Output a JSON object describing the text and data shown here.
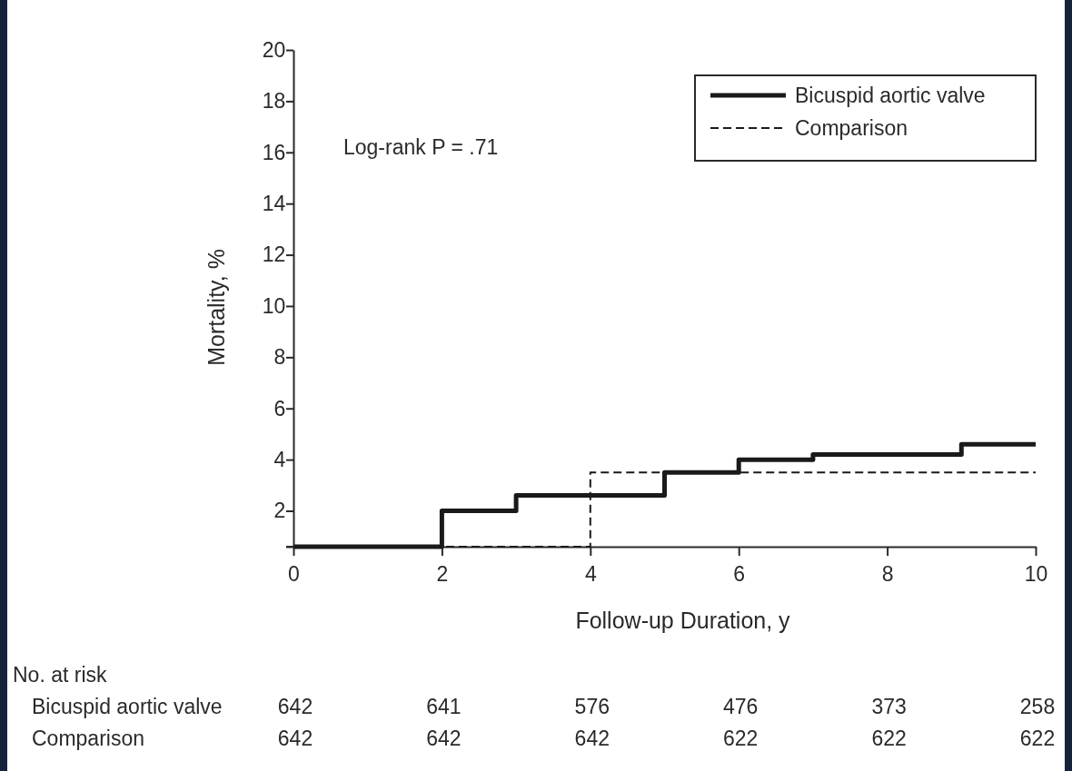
{
  "chart_data": {
    "type": "step",
    "xlabel": "Follow-up Duration, y",
    "ylabel": "Mortality, %",
    "xlim": [
      0,
      10
    ],
    "xticks": [
      0,
      2,
      4,
      6,
      8,
      10
    ],
    "ylim": [
      0.6,
      20
    ],
    "yticks": [
      {
        "value": 0.6,
        "label": null
      },
      2,
      4,
      6,
      8,
      10,
      12,
      14,
      16,
      18,
      20
    ],
    "legend": "top right",
    "grid": false,
    "series": [
      {
        "name": "Bicuspid aortic valve",
        "color": "#1a1a1a",
        "line_style": "solid",
        "x": [
          0,
          2,
          3,
          5,
          6,
          7,
          9,
          10
        ],
        "values": [
          0.6,
          2.0,
          2.6,
          3.5,
          4.0,
          4.2,
          4.6,
          4.6
        ]
      },
      {
        "name": "Comparison",
        "color": "#1a1a1a",
        "line_style": "dashed",
        "x": [
          0,
          4,
          10
        ],
        "values": [
          0.6,
          3.5,
          3.5
        ]
      }
    ],
    "annotations": [
      "Log-rank P = .71",
      "No. at risk",
      "Bicuspid aortic valve",
      "642",
      "641",
      "576",
      "476",
      "373",
      "258",
      "Comparison",
      "642",
      "642",
      "642",
      "622",
      "622",
      "622"
    ]
  }
}
